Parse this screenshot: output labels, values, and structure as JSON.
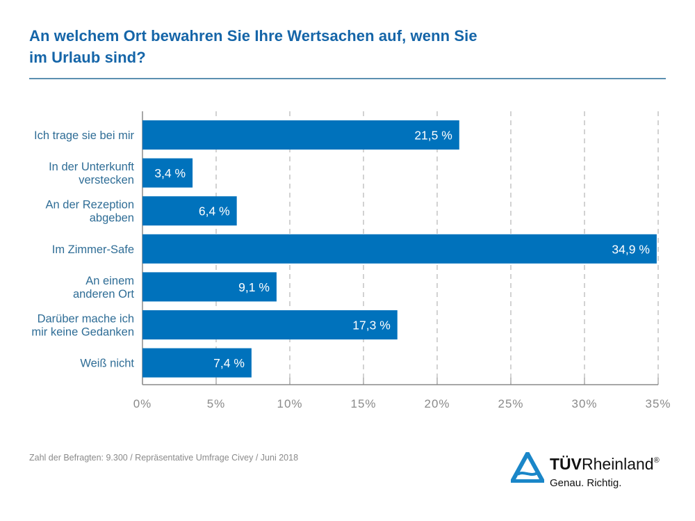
{
  "title": "An welchem Ort bewahren Sie Ihre Wertsachen auf, wenn Sie im Urlaub sind?",
  "title_lines": [
    "An welchem Ort bewahren Sie Ihre Wertsachen auf, wenn Sie",
    "im Urlaub sind?"
  ],
  "footnote": "Zahl der Befragten: 9.300 / Repräsentative Umfrage Civey / Juni 2018",
  "logo": {
    "brand_bold": "TÜV",
    "brand_regular": "Rheinland",
    "registered": "®",
    "tagline": "Genau. Richtig.",
    "icon": "tuv-triangle-icon"
  },
  "colors": {
    "bar": "#0072bc",
    "title": "#1565a8",
    "label": "#2f6d96",
    "grid": "#b5b5b5",
    "tick_label": "#8a8a8a"
  },
  "chart_data": {
    "type": "bar",
    "orientation": "horizontal",
    "title": "An welchem Ort bewahren Sie Ihre Wertsachen auf, wenn Sie im Urlaub sind?",
    "xlabel": "",
    "ylabel": "",
    "categories": [
      [
        "Ich trage sie bei mir"
      ],
      [
        "In der Unterkunft",
        "verstecken"
      ],
      [
        "An der Rezeption",
        "abgeben"
      ],
      [
        "Im Zimmer-Safe"
      ],
      [
        "An einem",
        "anderen Ort"
      ],
      [
        "Darüber mache ich",
        "mir keine Gedanken"
      ],
      [
        "Weiß nicht"
      ]
    ],
    "values": [
      21.5,
      3.4,
      6.4,
      34.9,
      9.1,
      17.3,
      7.4
    ],
    "value_labels": [
      "21,5 %",
      "3,4 %",
      "6,4 %",
      "34,9 %",
      "9,1 %",
      "17,3 %",
      "7,4 %"
    ],
    "xlim": [
      0,
      35
    ],
    "xticks": [
      0,
      5,
      10,
      15,
      20,
      25,
      30,
      35
    ],
    "xtick_labels": [
      "0%",
      "5%",
      "10%",
      "15%",
      "20%",
      "25%",
      "30%",
      "35%"
    ],
    "grid": "vertical dashed",
    "legend": "none"
  }
}
